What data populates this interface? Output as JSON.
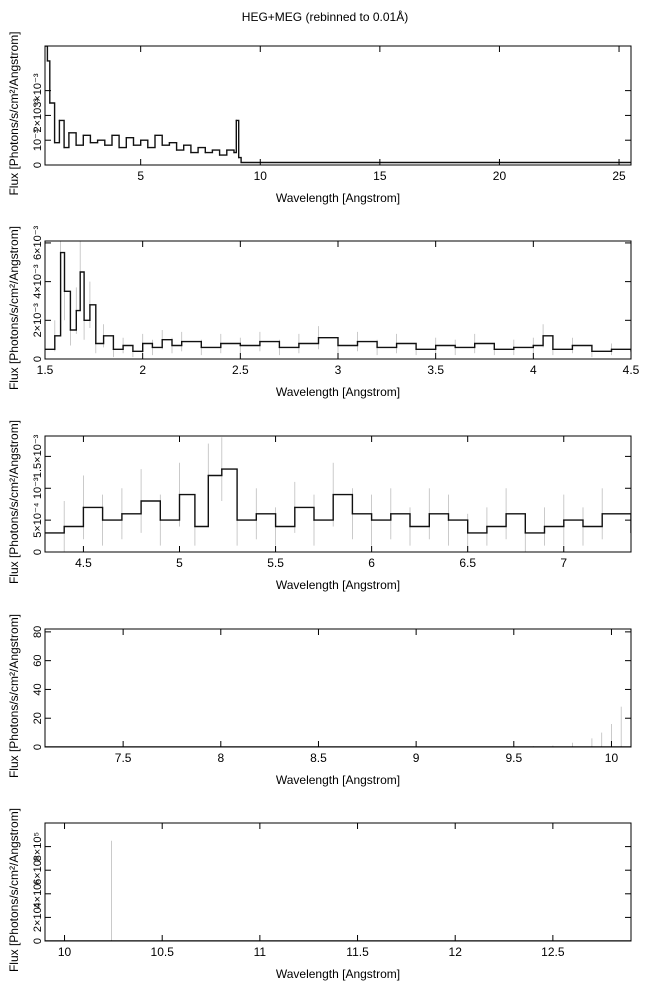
{
  "title": "HEG+MEG (rebinned to 0.01Å)",
  "colors": {
    "data": "#111111",
    "error": "#bdbdbd",
    "axis": "#000000"
  },
  "chart_data": [
    {
      "type": "line",
      "xlabel": "Wavelength [Angstrom]",
      "ylabel": "Flux [Photons/s/cm²/Angstrom]",
      "xlim": [
        1.0,
        25.5
      ],
      "ylim": [
        0,
        0.0048
      ],
      "xticks": [
        5,
        10,
        15,
        20,
        25
      ],
      "xtick_labels": [
        "5",
        "10",
        "15",
        "20",
        "25"
      ],
      "yticks": [
        0,
        0.001,
        0.002,
        0.003
      ],
      "ytick_labels": [
        "0",
        "10⁻³",
        "2×10⁻³",
        "3×10⁻³"
      ],
      "series": [
        {
          "x": [
            1.0,
            1.1,
            1.2,
            1.4,
            1.6,
            1.8,
            2.0,
            2.3,
            2.6,
            2.9,
            3.2,
            3.5,
            3.8,
            4.1,
            4.4,
            4.7,
            5.0,
            5.3,
            5.6,
            5.9,
            6.2,
            6.5,
            6.8,
            7.1,
            7.4,
            7.7,
            8.0,
            8.3,
            8.6,
            8.9,
            9.0,
            9.1,
            9.2,
            10,
            15,
            20,
            25.5
          ],
          "y": [
            0.0048,
            0.0042,
            0.0025,
            0.0009,
            0.0018,
            0.0007,
            0.0013,
            0.0008,
            0.0012,
            0.0009,
            0.001,
            0.0008,
            0.0012,
            0.0007,
            0.0011,
            0.0008,
            0.001,
            0.0007,
            0.0012,
            0.0008,
            0.0009,
            0.0006,
            0.0008,
            0.0005,
            0.0007,
            0.0005,
            0.0006,
            0.0004,
            0.0006,
            0.0005,
            0.0018,
            0.0003,
            0.0001,
            0.0001,
            0.0001,
            0.0001,
            0.0001
          ]
        }
      ]
    },
    {
      "type": "line",
      "xlabel": "Wavelength [Angstrom]",
      "ylabel": "Flux [Photons/s/cm²/Angstrom]",
      "xlim": [
        1.5,
        4.5
      ],
      "ylim": [
        0,
        0.0061
      ],
      "xticks": [
        1.5,
        2,
        2.5,
        3,
        3.5,
        4,
        4.5
      ],
      "xtick_labels": [
        "1.5",
        "2",
        "2.5",
        "3",
        "3.5",
        "4",
        "4.5"
      ],
      "yticks": [
        0,
        0.002,
        0.004,
        0.006
      ],
      "ytick_labels": [
        "0",
        "2×10⁻³",
        "4×10⁻³",
        "6×10⁻³"
      ],
      "series": [
        {
          "x": [
            1.5,
            1.55,
            1.58,
            1.6,
            1.63,
            1.66,
            1.68,
            1.7,
            1.73,
            1.76,
            1.8,
            1.85,
            1.9,
            1.95,
            2.0,
            2.05,
            2.1,
            2.15,
            2.2,
            2.3,
            2.4,
            2.5,
            2.6,
            2.7,
            2.8,
            2.9,
            3.0,
            3.1,
            3.2,
            3.3,
            3.4,
            3.5,
            3.6,
            3.7,
            3.8,
            3.9,
            4.0,
            4.05,
            4.1,
            4.2,
            4.3,
            4.4,
            4.5
          ],
          "y": [
            0.0005,
            0.0012,
            0.0055,
            0.0035,
            0.0015,
            0.0025,
            0.0045,
            0.002,
            0.0028,
            0.0008,
            0.0012,
            0.0005,
            0.0007,
            0.0004,
            0.0008,
            0.0006,
            0.001,
            0.0007,
            0.0009,
            0.0006,
            0.0008,
            0.0007,
            0.0009,
            0.0006,
            0.0008,
            0.0011,
            0.0007,
            0.0009,
            0.0006,
            0.0008,
            0.0005,
            0.0007,
            0.0006,
            0.0008,
            0.0005,
            0.0006,
            0.0007,
            0.0012,
            0.0005,
            0.0007,
            0.0004,
            0.0005,
            0.0004
          ],
          "err": [
            0.0005,
            0.0008,
            0.0025,
            0.0015,
            0.0008,
            0.0012,
            0.002,
            0.001,
            0.0012,
            0.0005,
            0.0006,
            0.0004,
            0.0004,
            0.0003,
            0.0005,
            0.0004,
            0.0005,
            0.0004,
            0.0005,
            0.0004,
            0.0005,
            0.0004,
            0.0005,
            0.0004,
            0.0005,
            0.0006,
            0.0004,
            0.0005,
            0.0004,
            0.0005,
            0.0003,
            0.0004,
            0.0004,
            0.0005,
            0.0003,
            0.0004,
            0.0004,
            0.0006,
            0.0003,
            0.0004,
            0.0003,
            0.0003,
            0.0003
          ]
        }
      ]
    },
    {
      "type": "line",
      "xlabel": "Wavelength [Angstrom]",
      "ylabel": "Flux [Photons/s/cm²/Angstrom]",
      "xlim": [
        4.3,
        7.35
      ],
      "ylim": [
        0,
        0.00182
      ],
      "xticks": [
        4.5,
        5,
        5.5,
        6,
        6.5,
        7
      ],
      "xtick_labels": [
        "4.5",
        "5",
        "5.5",
        "6",
        "6.5",
        "7"
      ],
      "yticks": [
        0,
        0.0005,
        0.001,
        0.0015
      ],
      "ytick_labels": [
        "0",
        "5×10⁻⁴",
        "10⁻³",
        "1.5×10⁻³"
      ],
      "series": [
        {
          "x": [
            4.3,
            4.4,
            4.5,
            4.6,
            4.7,
            4.8,
            4.9,
            5.0,
            5.08,
            5.15,
            5.22,
            5.3,
            5.4,
            5.5,
            5.6,
            5.7,
            5.8,
            5.9,
            6.0,
            6.1,
            6.2,
            6.3,
            6.4,
            6.5,
            6.6,
            6.7,
            6.8,
            6.9,
            7.0,
            7.1,
            7.2,
            7.35
          ],
          "y": [
            0.0003,
            0.0004,
            0.0007,
            0.0005,
            0.0006,
            0.0008,
            0.0005,
            0.0009,
            0.0004,
            0.0012,
            0.0013,
            0.0005,
            0.0006,
            0.0004,
            0.0007,
            0.0005,
            0.0009,
            0.0006,
            0.0005,
            0.0006,
            0.0004,
            0.0006,
            0.0005,
            0.0003,
            0.0004,
            0.0006,
            0.0003,
            0.0004,
            0.0005,
            0.0004,
            0.0006,
            0.0003
          ],
          "err": [
            0.0003,
            0.0004,
            0.0005,
            0.0004,
            0.0004,
            0.0005,
            0.0004,
            0.0005,
            0.0003,
            0.0005,
            0.0005,
            0.0004,
            0.0004,
            0.0003,
            0.0004,
            0.0004,
            0.0005,
            0.0004,
            0.0004,
            0.0004,
            0.0003,
            0.0004,
            0.0004,
            0.0003,
            0.0003,
            0.0004,
            0.0003,
            0.0003,
            0.0004,
            0.0003,
            0.0004,
            0.0003
          ]
        }
      ]
    },
    {
      "type": "line",
      "xlabel": "Wavelength [Angstrom]",
      "ylabel": "Flux [Photons/s/cm²/Angstrom]",
      "xlim": [
        7.1,
        10.1
      ],
      "ylim": [
        0,
        82
      ],
      "xticks": [
        7.5,
        8,
        8.5,
        9,
        9.5,
        10
      ],
      "xtick_labels": [
        "7.5",
        "8",
        "8.5",
        "9",
        "9.5",
        "10"
      ],
      "yticks": [
        0,
        20,
        40,
        60,
        80
      ],
      "ytick_labels": [
        "0",
        "20",
        "40",
        "60",
        "80"
      ],
      "series": [
        {
          "x": [
            7.1,
            9.5,
            9.6,
            9.7,
            9.8,
            9.9,
            9.95,
            10.0,
            10.05,
            10.1
          ],
          "y": [
            0,
            0,
            0,
            0,
            0,
            0,
            0,
            0,
            0,
            0
          ],
          "err": [
            0,
            0,
            0.5,
            1,
            3,
            6,
            10,
            16,
            28,
            52
          ]
        }
      ]
    },
    {
      "type": "line",
      "xlabel": "Wavelength [Angstrom]",
      "ylabel": "Flux [Photons/s/cm²/Angstrom]",
      "xlim": [
        9.9,
        12.9
      ],
      "ylim": [
        0,
        1000000
      ],
      "xticks": [
        10,
        10.5,
        11,
        11.5,
        12,
        12.5
      ],
      "xtick_labels": [
        "10",
        "10.5",
        "11",
        "11.5",
        "12",
        "12.5"
      ],
      "yticks": [
        0,
        200000,
        400000,
        600000,
        800000
      ],
      "ytick_labels": [
        "0",
        "2×10⁵",
        "4×10⁵",
        "6×10⁵",
        "8×10⁵"
      ],
      "series": [
        {
          "x": [
            9.9,
            10.24,
            12.9
          ],
          "y": [
            0,
            0,
            0
          ],
          "err": [
            0,
            850000,
            0
          ]
        }
      ]
    }
  ]
}
